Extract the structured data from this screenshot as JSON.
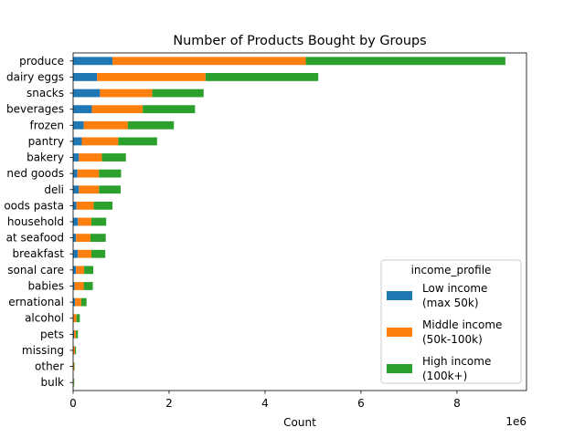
{
  "chart_data": {
    "type": "bar",
    "orientation": "horizontal",
    "stacked": true,
    "title": "Number of Products Bought by Groups",
    "xlabel": "Count",
    "ylabel": "",
    "x_offset_text": "1e6",
    "x_ticks": [
      0,
      2,
      4,
      6,
      8
    ],
    "xlim": [
      0,
      9.45
    ],
    "x_unit_multiplier": 1000000,
    "categories": [
      "produce",
      "dairy eggs",
      "snacks",
      "beverages",
      "frozen",
      "pantry",
      "bakery",
      "canned goods",
      "deli",
      "dry goods pasta",
      "household",
      "meat seafood",
      "breakfast",
      "personal care",
      "babies",
      "international",
      "alcohol",
      "pets",
      "missing",
      "other",
      "bulk"
    ],
    "category_labels_visible": [
      "produce",
      "dairy eggs",
      "snacks",
      "beverages",
      "frozen",
      "pantry",
      "bakery",
      "ned goods",
      "deli",
      "oods pasta",
      "household",
      "at seafood",
      "breakfast",
      "sonal care",
      "babies",
      "ernational",
      "alcohol",
      "pets",
      "missing",
      "other",
      "bulk"
    ],
    "series": [
      {
        "name": "Low income\n(max 50k)",
        "color": "#1f77b4",
        "values": [
          0.82,
          0.5,
          0.56,
          0.39,
          0.22,
          0.18,
          0.12,
          0.09,
          0.12,
          0.07,
          0.1,
          0.06,
          0.1,
          0.06,
          0.03,
          0.04,
          0.01,
          0.02,
          0.01,
          0.005,
          0.003
        ]
      },
      {
        "name": "Middle income\n(50k-100k)",
        "color": "#ff7f0e",
        "values": [
          4.03,
          2.26,
          1.09,
          1.06,
          0.92,
          0.76,
          0.48,
          0.45,
          0.42,
          0.36,
          0.28,
          0.3,
          0.28,
          0.17,
          0.19,
          0.13,
          0.06,
          0.04,
          0.03,
          0.015,
          0.01
        ]
      },
      {
        "name": "High income\n(100k+)",
        "color": "#2ca02c",
        "values": [
          4.16,
          2.35,
          1.07,
          1.09,
          0.96,
          0.81,
          0.5,
          0.46,
          0.45,
          0.39,
          0.31,
          0.32,
          0.29,
          0.19,
          0.19,
          0.11,
          0.07,
          0.04,
          0.02,
          0.01,
          0.01
        ]
      }
    ],
    "legend": {
      "title": "income_profile",
      "position": "lower right"
    },
    "grid": false
  }
}
